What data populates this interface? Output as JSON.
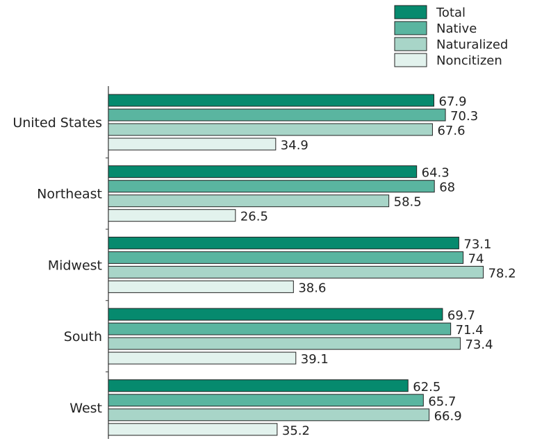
{
  "chart_data": {
    "type": "bar",
    "orientation": "horizontal",
    "categories": [
      "United States",
      "Northeast",
      "Midwest",
      "South",
      "West"
    ],
    "series": [
      {
        "name": "Total",
        "color": "#068a6e",
        "values": [
          67.9,
          64.3,
          73.1,
          69.7,
          62.5
        ],
        "labels": [
          "67.9",
          "64.3",
          "73.1",
          "69.7",
          "62.5"
        ]
      },
      {
        "name": "Native",
        "color": "#5ab5a0",
        "values": [
          70.3,
          68,
          74,
          71.4,
          65.7
        ],
        "labels": [
          "70.3",
          "68",
          "74",
          "71.4",
          "65.7"
        ]
      },
      {
        "name": "Naturalized",
        "color": "#a8d5c8",
        "values": [
          67.6,
          58.5,
          78.2,
          73.4,
          66.9
        ],
        "labels": [
          "67.6",
          "58.5",
          "78.2",
          "73.4",
          "66.9"
        ]
      },
      {
        "name": "Noncitizen",
        "color": "#e2f2ed",
        "values": [
          34.9,
          26.5,
          38.6,
          39.1,
          35.2
        ],
        "labels": [
          "34.9",
          "26.5",
          "38.6",
          "39.1",
          "35.2"
        ]
      }
    ],
    "xlim": [
      0,
      78.2
    ],
    "grid": false,
    "legend": "top-right"
  }
}
